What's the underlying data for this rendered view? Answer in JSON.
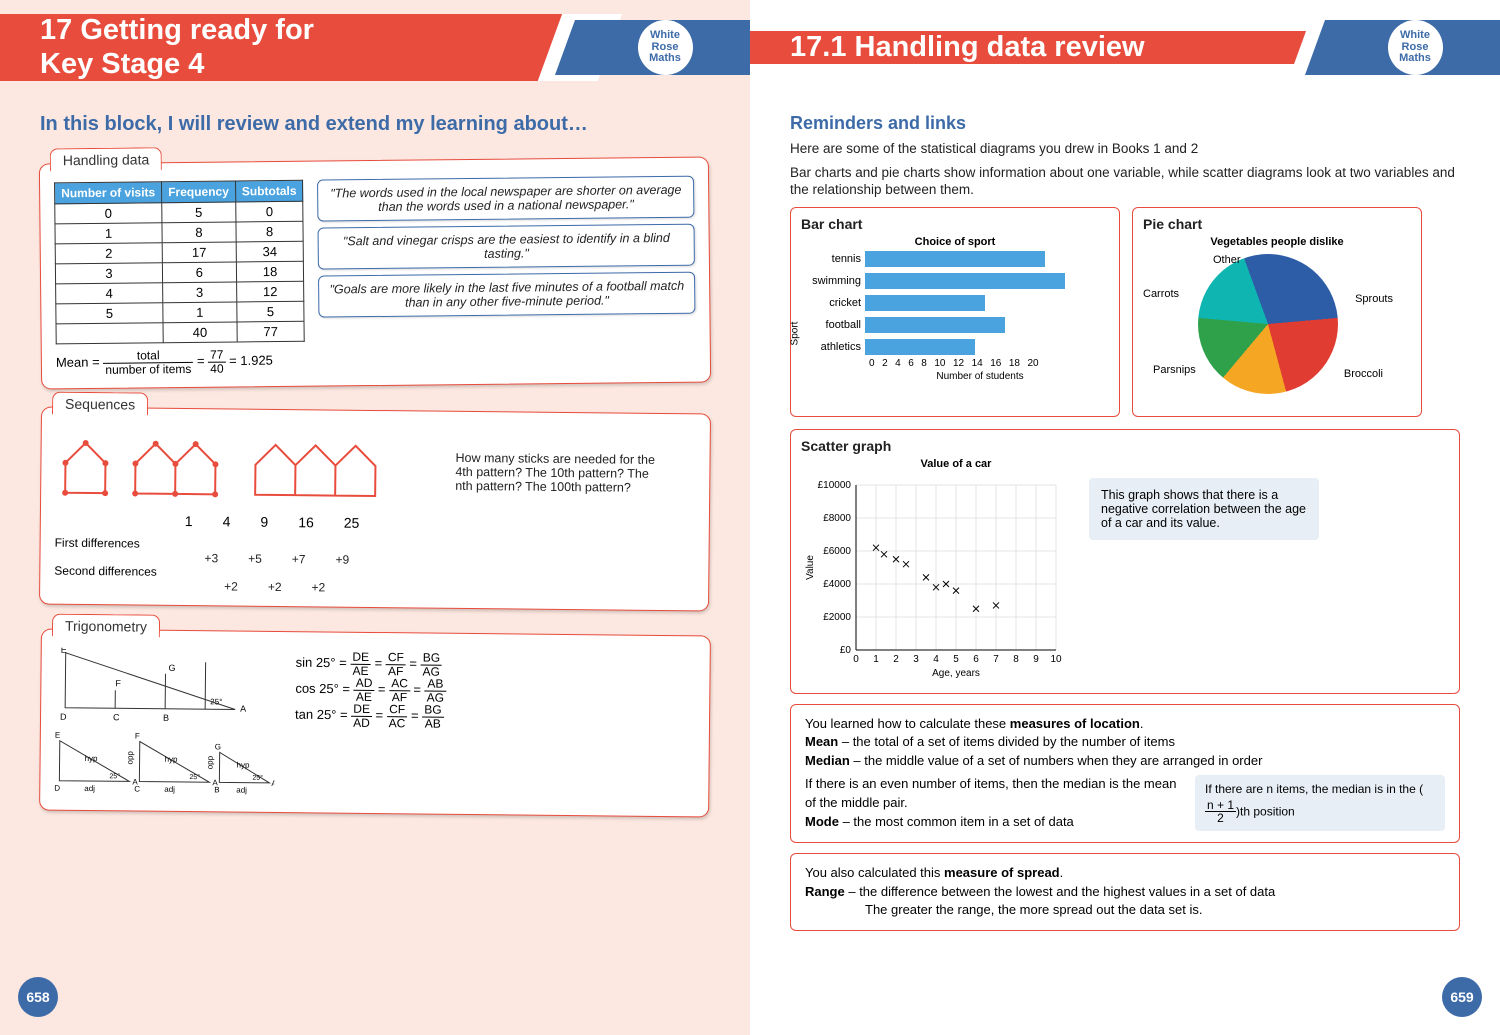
{
  "left": {
    "pageNumber": "658",
    "title": "17 Getting ready for\nKey Stage 4",
    "logo": {
      "l1": "White",
      "l2": "Rose",
      "l3": "Maths"
    },
    "intro": "In this block, I will review and extend my learning about…",
    "handlingData": {
      "tab": "Handling data",
      "headers": [
        "Number of visits",
        "Frequency",
        "Subtotals"
      ],
      "rows": [
        [
          "0",
          "5",
          "0"
        ],
        [
          "1",
          "8",
          "8"
        ],
        [
          "2",
          "17",
          "34"
        ],
        [
          "3",
          "6",
          "18"
        ],
        [
          "4",
          "3",
          "12"
        ],
        [
          "5",
          "1",
          "5"
        ],
        [
          "",
          "40",
          "77"
        ]
      ],
      "meanPrefix": "Mean =",
      "meanFrac1": {
        "num": "total",
        "den": "number of items"
      },
      "meanFrac2": {
        "num": "77",
        "den": "40"
      },
      "meanResult": "= 1.925",
      "quotes": [
        "\"The words used in the local newspaper are shorter on average than the words used in a national newspaper.\"",
        "\"Salt and vinegar crisps are the easiest to identify in a blind tasting.\"",
        "\"Goals are more likely in the last five minutes of a football match than in any other five-minute period.\""
      ]
    },
    "sequences": {
      "tab": "Sequences",
      "note": "How many sticks are needed for the 4th pattern? The 10th pattern? The nth pattern? The 100th pattern?",
      "nums": [
        "1",
        "4",
        "9",
        "16",
        "25"
      ],
      "firstLabel": "First differences",
      "firstDiffs": [
        "+3",
        "+5",
        "+7",
        "+9"
      ],
      "secondLabel": "Second differences",
      "secondDiffs": [
        "+2",
        "+2",
        "+2"
      ],
      "stickColor": "#e84c3d"
    },
    "trig": {
      "tab": "Trigonometry",
      "sin": "sin 25° =",
      "cos": "cos 25° =",
      "tan": "tan 25° =",
      "sinFracs": [
        {
          "n": "DE",
          "d": "AE"
        },
        {
          "n": "CF",
          "d": "AF"
        },
        {
          "n": "BG",
          "d": "AG"
        }
      ],
      "cosFracs": [
        {
          "n": "AD",
          "d": "AE"
        },
        {
          "n": "AC",
          "d": "AF"
        },
        {
          "n": "AB",
          "d": "AG"
        }
      ],
      "tanFracs": [
        {
          "n": "DE",
          "d": "AD"
        },
        {
          "n": "CF",
          "d": "AC"
        },
        {
          "n": "BG",
          "d": "AB"
        }
      ],
      "labels": {
        "hyp": "hyp",
        "opp": "opp",
        "adj": "adj",
        "angle": "25°"
      }
    }
  },
  "right": {
    "pageNumber": "659",
    "title": "17.1 Handling data review",
    "logo": {
      "l1": "White",
      "l2": "Rose",
      "l3": "Maths"
    },
    "sectionTitle": "Reminders and links",
    "para1": "Here are some of the statistical diagrams you drew in Books 1 and 2",
    "para2": "Bar charts and pie charts show information about one variable, while scatter diagrams look at two variables and the relationship between them.",
    "barChart": {
      "title": "Bar chart",
      "chartTitle": "Choice of sport",
      "ylabel": "Sport",
      "xlabel": "Number of students",
      "categories": [
        "tennis",
        "swimming",
        "cricket",
        "football",
        "athletics"
      ],
      "values": [
        18,
        20,
        12,
        14,
        11
      ],
      "xmax": 20,
      "ticks": [
        "0",
        "2",
        "4",
        "6",
        "8",
        "10",
        "12",
        "14",
        "16",
        "18",
        "20"
      ],
      "barColor": "#4aa3df"
    },
    "pieChart": {
      "title": "Pie chart",
      "chartTitle": "Vegetables people dislike",
      "slices": [
        {
          "label": "Sprouts",
          "color": "#2e5da8",
          "angle": 105
        },
        {
          "label": "Broccoli",
          "color": "#e03c31",
          "angle": 80
        },
        {
          "label": "Parsnips",
          "color": "#f5a623",
          "angle": 55
        },
        {
          "label": "Carrots",
          "color": "#2fa14b",
          "angle": 55
        },
        {
          "label": "Other",
          "color": "#0fb5b0",
          "angle": 65
        }
      ]
    },
    "scatter": {
      "title": "Scatter graph",
      "chartTitle": "Value of a car",
      "ylabel": "Value",
      "xlabel": "Age, years",
      "yticks": [
        "£0",
        "£2000",
        "£4000",
        "£6000",
        "£8000",
        "£10000"
      ],
      "xticks": [
        "0",
        "1",
        "2",
        "3",
        "4",
        "5",
        "6",
        "7",
        "8",
        "9",
        "10"
      ],
      "ymax": 10000,
      "xmax": 10,
      "points": [
        [
          1,
          6200
        ],
        [
          1.4,
          5800
        ],
        [
          2,
          5500
        ],
        [
          2.5,
          5200
        ],
        [
          3.5,
          4400
        ],
        [
          4,
          3800
        ],
        [
          4.5,
          4000
        ],
        [
          5,
          3600
        ],
        [
          6,
          2500
        ],
        [
          7,
          2700
        ]
      ],
      "note": "This graph shows that there is a negative correlation between the age of a car and its value."
    },
    "measuresLoc": {
      "intro": "You learned how to calculate these ",
      "introBold": "measures of location",
      "mean": "Mean – the total of a set of items divided by the number of items",
      "median": "Median – the middle value of a set of numbers when they are arranged in order",
      "evenNote": "If there is an even number of items, then the median is the mean of the middle pair.",
      "mode": "Mode – the most common item in a set of data",
      "hintPre": "If there are n items, the median is in the (",
      "hintFrac": {
        "n": "n + 1",
        "d": "2"
      },
      "hintPost": ")th position"
    },
    "measuresSpread": {
      "intro": "You also calculated this ",
      "introBold": "measure of spread",
      "range": "Range – the difference between the lowest and the highest values in a set of data",
      "rangeNote": "The greater the range, the more spread out the data set is."
    }
  },
  "colors": {
    "red": "#e84c3d",
    "blue": "#3d6ba8",
    "barBlue": "#4aa3df",
    "hintBg": "#e8eef6"
  }
}
